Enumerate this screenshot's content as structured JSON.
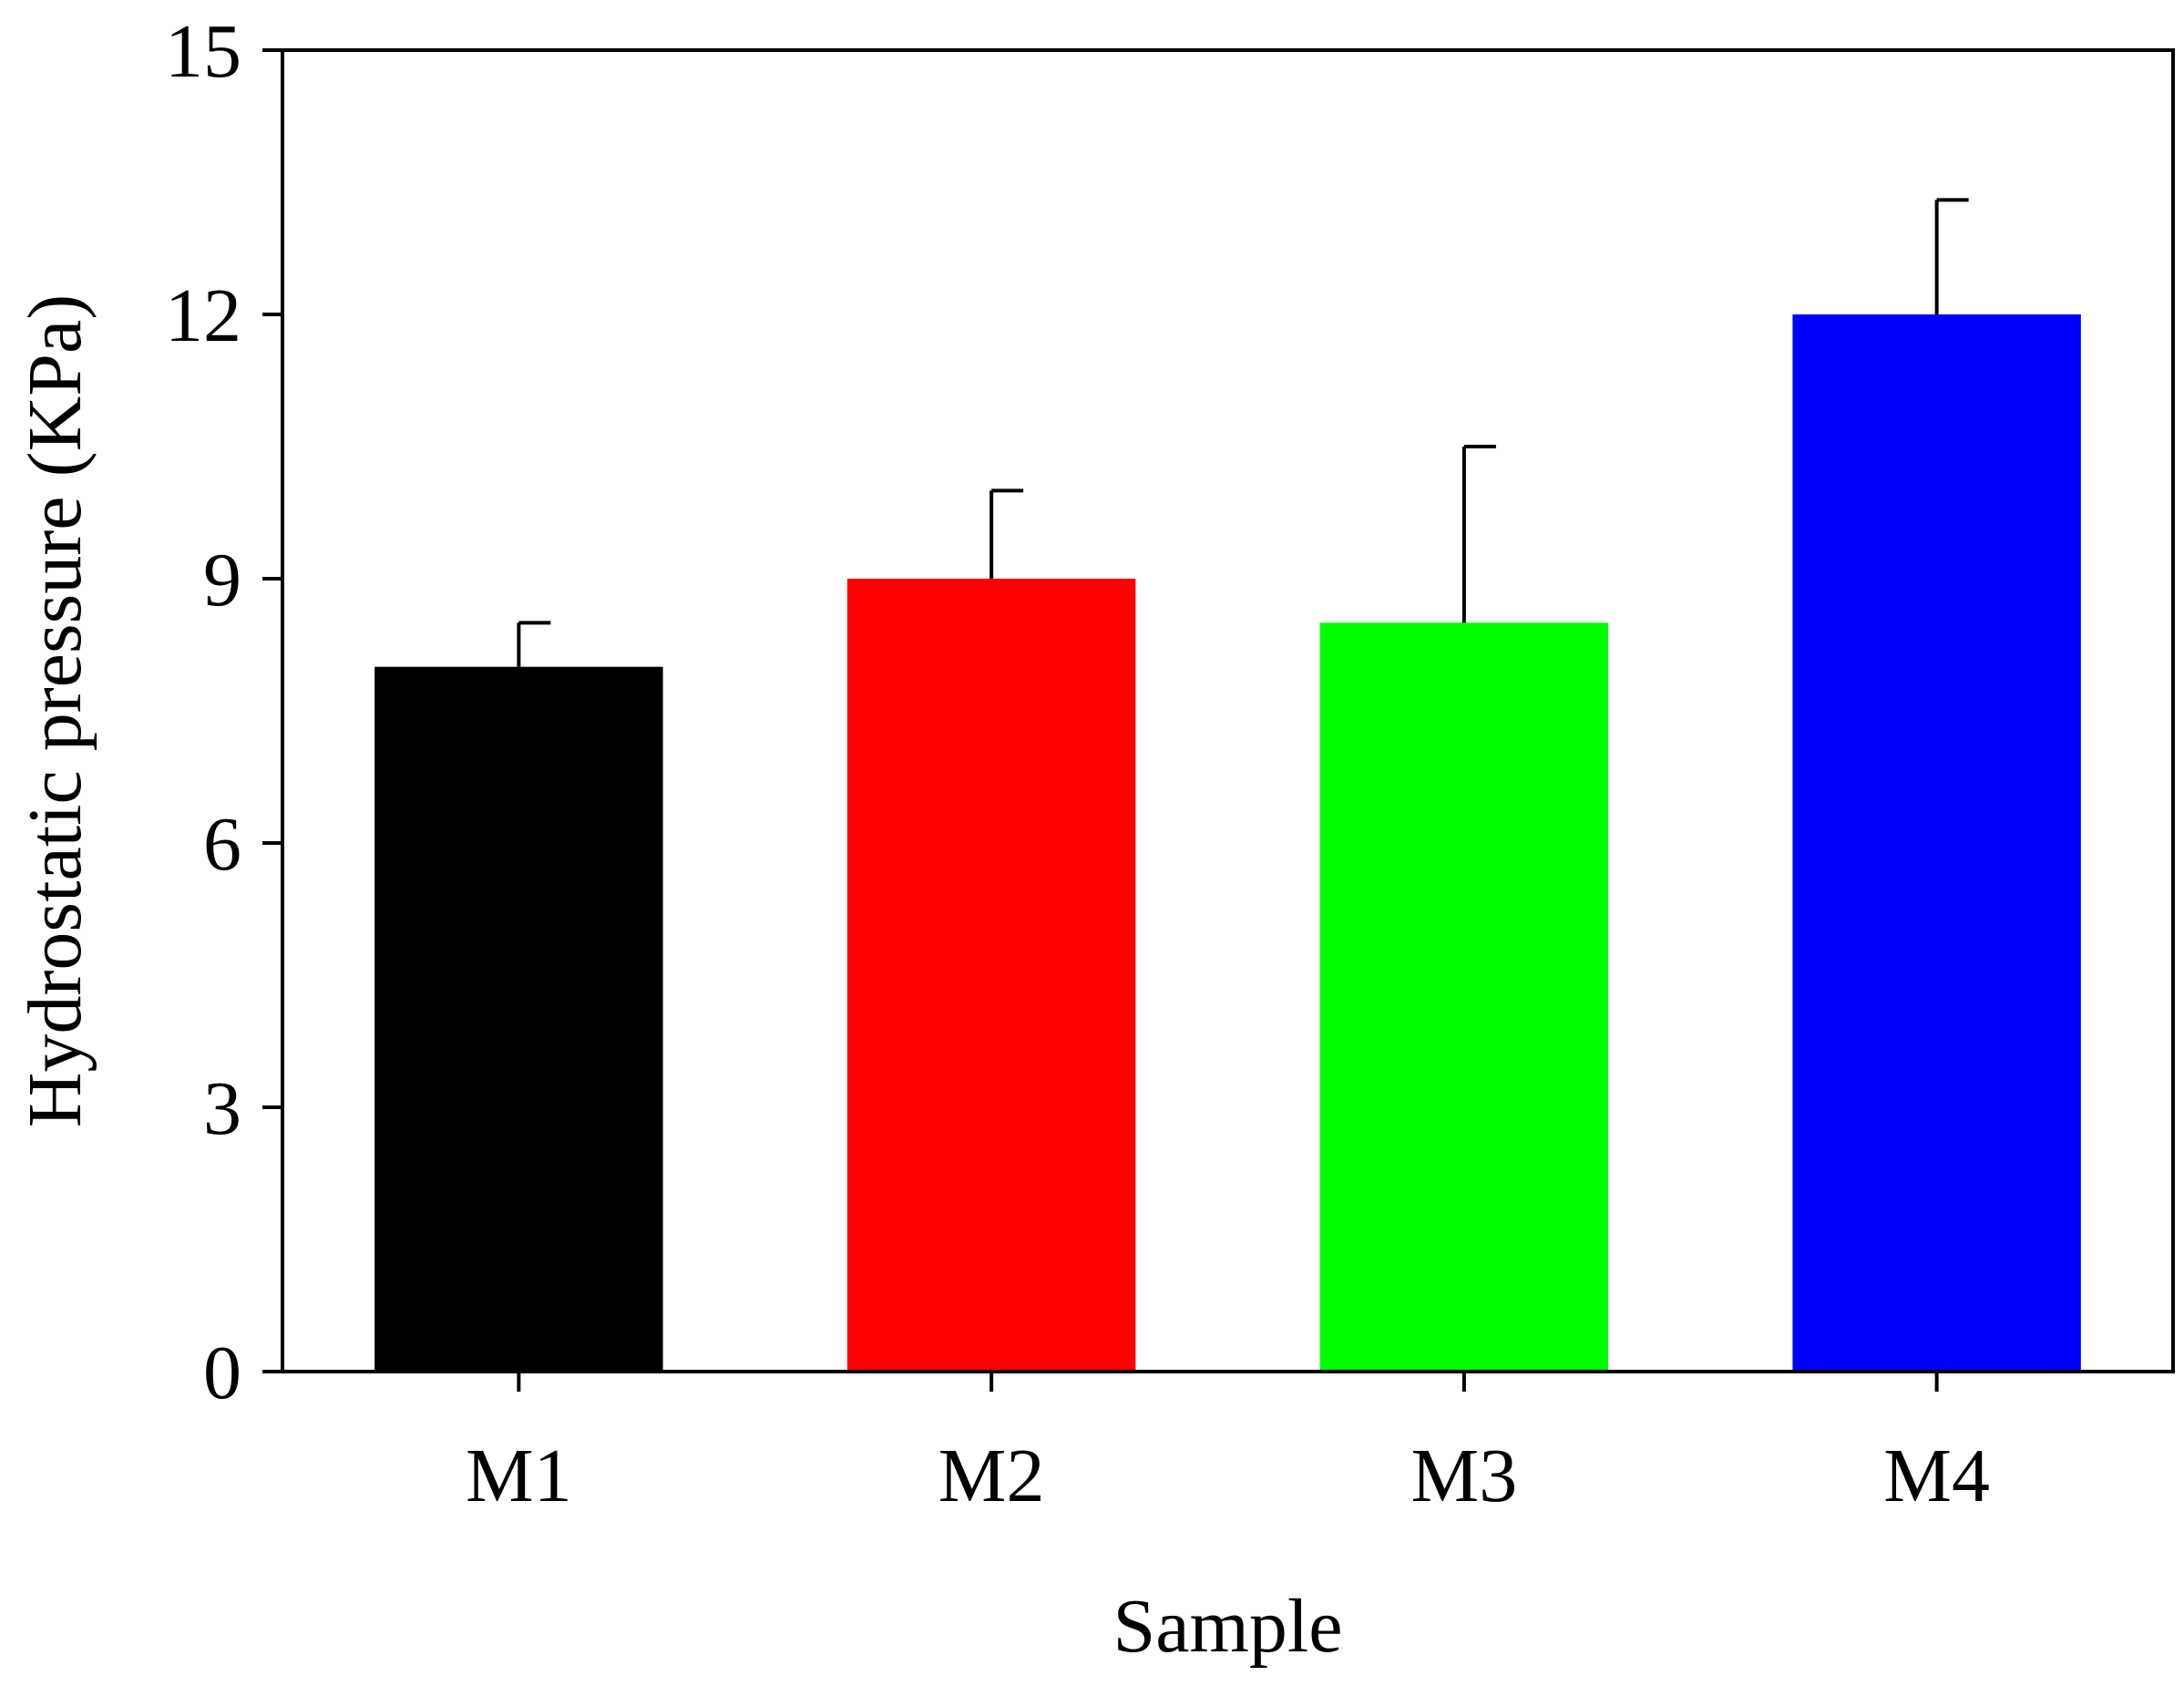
{
  "chart_data": {
    "type": "bar",
    "categories": [
      "M1",
      "M2",
      "M3",
      "M4"
    ],
    "values": [
      8.0,
      9.0,
      8.5,
      12.0
    ],
    "error_plus": [
      0.5,
      1.0,
      2.0,
      1.3
    ],
    "colors": [
      "#000000",
      "#ff0000",
      "#00ff00",
      "#0000ff"
    ],
    "xlabel": "Sample",
    "ylabel": "Hydrostatic pressure (KPa)",
    "ylim": [
      0,
      15
    ],
    "yticks": [
      0,
      3,
      6,
      9,
      12,
      15
    ],
    "grid": false,
    "legend": "none"
  }
}
